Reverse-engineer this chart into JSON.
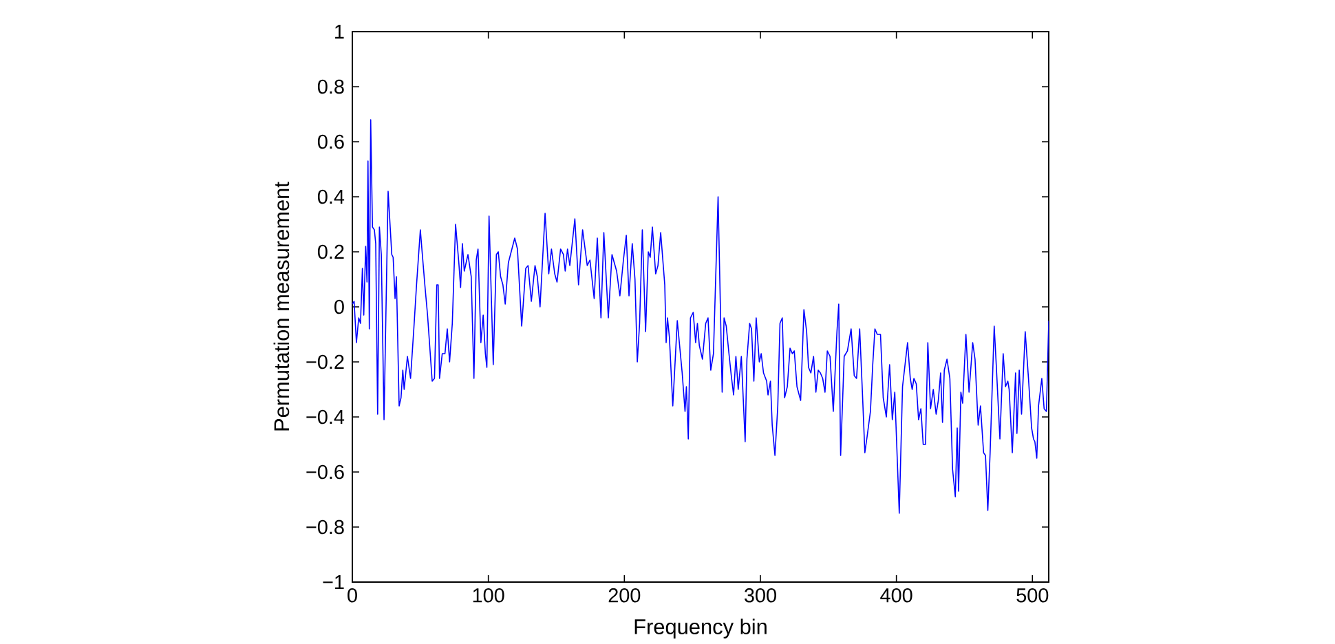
{
  "chart_data": {
    "type": "line",
    "xlabel": "Frequency bin",
    "ylabel": "Permutation measurement",
    "color": "#0000ff",
    "xlim": [
      0,
      512
    ],
    "ylim": [
      -1,
      1
    ],
    "xticks": [
      0,
      100,
      200,
      300,
      400,
      500
    ],
    "yticks": [
      {
        "value": -1,
        "label": "−1"
      },
      {
        "value": -0.8,
        "label": "−0.8"
      },
      {
        "value": -0.6,
        "label": "−0.6"
      },
      {
        "value": -0.4,
        "label": "−0.4"
      },
      {
        "value": -0.2,
        "label": "−0.2"
      },
      0,
      0.2,
      0.4,
      0.6,
      0.8,
      1
    ],
    "x": [
      0,
      1.3,
      3,
      4.7,
      6,
      7.4,
      8.4,
      9.8,
      10.8,
      11.5,
      12.5,
      13.5,
      14.8,
      16.2,
      17.2,
      18.6,
      19.9,
      21.3,
      23.3,
      26.3,
      29,
      30,
      31.4,
      32.4,
      34.4,
      35.8,
      37.1,
      38.1,
      40.5,
      42.8,
      45.2,
      47.2,
      50,
      51.3,
      53.3,
      55.3,
      58.7,
      60.4,
      62.1,
      63.1,
      64.1,
      66.1,
      68.1,
      69.8,
      71.5,
      73.5,
      75.9,
      78.3,
      79.6,
      80.9,
      82.3,
      85,
      87.4,
      89.4,
      91.1,
      92.4,
      94.5,
      96.2,
      97.8,
      98.9,
      100.5,
      103.6,
      105.9,
      107.3,
      109,
      110.7,
      112.4,
      114.7,
      119.4,
      121.4,
      124.5,
      127.5,
      129.2,
      131.6,
      134.3,
      136,
      138,
      141.7,
      144.4,
      146.4,
      148.8,
      150.5,
      153.1,
      155.2,
      156.5,
      158.2,
      159.9,
      163.6,
      166.3,
      169.3,
      172.7,
      174.7,
      177.8,
      180.1,
      182.8,
      184.9,
      188.2,
      190.9,
      194.3,
      196.7,
      199.3,
      201.4,
      203.4,
      205.8,
      207.8,
      209.5,
      211.2,
      213.2,
      215.6,
      217.6,
      219,
      220.6,
      223,
      224.7,
      226.7,
      229.7,
      230.7,
      231.7,
      233.1,
      235.6,
      238.9,
      242.5,
      244.6,
      245.6,
      247,
      248.6,
      250.6,
      252.4,
      253.7,
      255.1,
      257.4,
      259.8,
      261.5,
      263.5,
      265.5,
      268.9,
      271.9,
      273.3,
      274.9,
      276.9,
      278.6,
      280.3,
      282,
      283.7,
      286,
      288.8,
      290.1,
      292.1,
      293.5,
      295.2,
      296.9,
      299.2,
      300.6,
      302.3,
      304.6,
      305.6,
      307.4,
      308.7,
      310.7,
      312.8,
      314.4,
      316.1,
      317.8,
      319.8,
      321.8,
      323.5,
      324.9,
      326.9,
      329.6,
      332,
      334,
      335.4,
      337.1,
      339.1,
      340.8,
      342.5,
      344.1,
      345.8,
      347.5,
      349.2,
      351.2,
      353.6,
      356.3,
      357.6,
      359,
      361.6,
      364,
      366.7,
      369,
      370.7,
      373,
      375,
      376.8,
      378.5,
      380.9,
      382.6,
      384.2,
      385.9,
      388.3,
      390.3,
      392.6,
      395,
      397,
      398.8,
      402.1,
      404.5,
      408.2,
      410.2,
      411.6,
      412.9,
      414.6,
      416.3,
      418,
      419.7,
      421.4,
      423.1,
      425.1,
      427.1,
      429.2,
      430.8,
      432.5,
      433.9,
      435.2,
      437.2,
      439.3,
      441.3,
      443.3,
      444.7,
      445.7,
      447.4,
      448.7,
      451.1,
      453.4,
      456.1,
      457.8,
      460.1,
      461.8,
      464.1,
      465.5,
      467.2,
      468.9,
      471.9,
      473.4,
      476.1,
      478.5,
      480.2,
      481.9,
      482.9,
      485.2,
      487.6,
      488.6,
      490.3,
      492,
      494.7,
      497.1,
      499.4,
      500.8,
      501.8,
      503.2,
      504.5,
      506.9,
      508.6,
      510.3,
      512
    ],
    "values": [
      0.01,
      0.02,
      -0.13,
      -0.04,
      -0.06,
      0.14,
      -0.03,
      0.22,
      0.09,
      0.53,
      -0.08,
      0.68,
      0.29,
      0.28,
      0.23,
      -0.39,
      0.29,
      0.19,
      -0.41,
      0.42,
      0.19,
      0.18,
      0.03,
      0.11,
      -0.36,
      -0.33,
      -0.23,
      -0.3,
      -0.18,
      -0.26,
      -0.08,
      0.08,
      0.28,
      0.2,
      0.08,
      -0.03,
      -0.27,
      -0.26,
      0.08,
      0.08,
      -0.26,
      -0.17,
      -0.17,
      -0.08,
      -0.2,
      -0.06,
      0.3,
      0.16,
      0.07,
      0.23,
      0.13,
      0.19,
      0.11,
      -0.26,
      0.17,
      0.21,
      -0.13,
      -0.03,
      -0.17,
      -0.22,
      0.33,
      -0.21,
      0.19,
      0.2,
      0.11,
      0.08,
      0.01,
      0.16,
      0.25,
      0.21,
      -0.07,
      0.14,
      0.15,
      0.02,
      0.15,
      0.11,
      0,
      0.34,
      0.12,
      0.21,
      0.12,
      0.09,
      0.21,
      0.19,
      0.13,
      0.21,
      0.15,
      0.32,
      0.08,
      0.28,
      0.15,
      0.17,
      0.03,
      0.25,
      -0.04,
      0.27,
      -0.04,
      0.19,
      0.13,
      0.04,
      0.17,
      0.26,
      0.04,
      0.23,
      0.1,
      -0.2,
      -0.06,
      0.28,
      -0.09,
      0.2,
      0.18,
      0.29,
      0.12,
      0.15,
      0.27,
      0.08,
      -0.13,
      -0.04,
      -0.11,
      -0.36,
      -0.05,
      -0.24,
      -0.38,
      -0.29,
      -0.48,
      -0.04,
      -0.02,
      -0.13,
      -0.06,
      -0.14,
      -0.19,
      -0.06,
      -0.04,
      -0.23,
      -0.17,
      0.4,
      -0.31,
      -0.04,
      -0.07,
      -0.17,
      -0.25,
      -0.32,
      -0.18,
      -0.3,
      -0.18,
      -0.49,
      -0.19,
      -0.06,
      -0.08,
      -0.27,
      -0.04,
      -0.2,
      -0.17,
      -0.24,
      -0.27,
      -0.32,
      -0.27,
      -0.43,
      -0.54,
      -0.36,
      -0.06,
      -0.04,
      -0.33,
      -0.29,
      -0.15,
      -0.17,
      -0.16,
      -0.29,
      -0.34,
      -0.01,
      -0.09,
      -0.22,
      -0.24,
      -0.18,
      -0.31,
      -0.23,
      -0.24,
      -0.26,
      -0.31,
      -0.16,
      -0.18,
      -0.38,
      -0.09,
      0.01,
      -0.54,
      -0.18,
      -0.16,
      -0.08,
      -0.25,
      -0.26,
      -0.08,
      -0.31,
      -0.53,
      -0.47,
      -0.38,
      -0.21,
      -0.08,
      -0.1,
      -0.1,
      -0.33,
      -0.4,
      -0.21,
      -0.41,
      -0.31,
      -0.75,
      -0.29,
      -0.13,
      -0.26,
      -0.3,
      -0.26,
      -0.28,
      -0.41,
      -0.37,
      -0.5,
      -0.5,
      -0.13,
      -0.37,
      -0.3,
      -0.39,
      -0.34,
      -0.24,
      -0.42,
      -0.23,
      -0.19,
      -0.26,
      -0.59,
      -0.69,
      -0.44,
      -0.67,
      -0.31,
      -0.35,
      -0.1,
      -0.31,
      -0.13,
      -0.19,
      -0.43,
      -0.36,
      -0.53,
      -0.54,
      -0.74,
      -0.53,
      -0.07,
      -0.21,
      -0.48,
      -0.17,
      -0.29,
      -0.27,
      -0.3,
      -0.53,
      -0.24,
      -0.46,
      -0.23,
      -0.39,
      -0.09,
      -0.26,
      -0.44,
      -0.48,
      -0.49,
      -0.55,
      -0.36,
      -0.26,
      -0.37,
      -0.38,
      -0.05
    ]
  }
}
